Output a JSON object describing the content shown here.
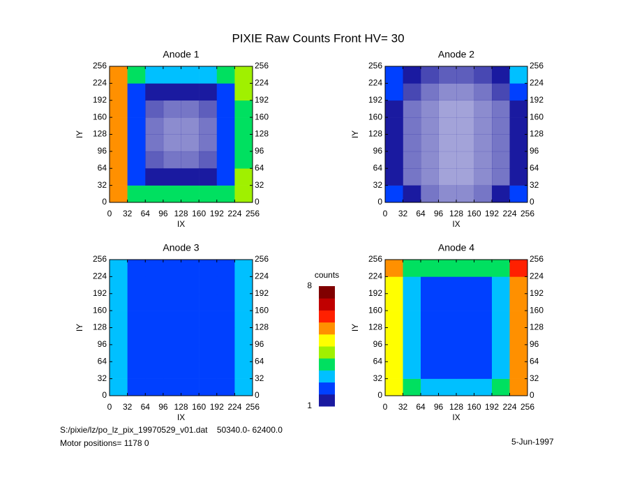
{
  "title": "PIXIE Raw Counts Front HV= 30",
  "footer": {
    "file": "S:/pixie/lz/po_lz_pix_19970529_v01.dat    50340.0- 62400.0",
    "motor": "Motor positions= 1178 0",
    "date": "5-Jun-1997"
  },
  "colorbar": {
    "label": "counts",
    "lim": [
      1,
      8
    ],
    "ticks": [
      1,
      8
    ],
    "colors": [
      "#1a1aa0",
      "#0040ff",
      "#00c0ff",
      "#00e060",
      "#a0f000",
      "#ffff00",
      "#ff9000",
      "#ff2000",
      "#c00000",
      "#800000"
    ]
  },
  "chart_data": [
    {
      "type": "heatmap",
      "title": "Anode 1",
      "xlabel": "IX",
      "ylabel": "IY",
      "xlim": [
        0,
        256
      ],
      "ylim": [
        0,
        256
      ],
      "xticks": [
        0,
        32,
        64,
        96,
        128,
        160,
        192,
        224,
        256
      ],
      "yticks": [
        0,
        32,
        64,
        96,
        128,
        160,
        192,
        224,
        256
      ],
      "values": [
        [
          6,
          3,
          3,
          3,
          3,
          3,
          3,
          4
        ],
        [
          6,
          2,
          1,
          1,
          1,
          1,
          2,
          4
        ],
        [
          6,
          1.5,
          0.7,
          0.6,
          0.6,
          0.7,
          1.5,
          3.5
        ],
        [
          6,
          1.5,
          0.6,
          0.5,
          0.5,
          0.6,
          1.5,
          3.5
        ],
        [
          6,
          1.5,
          0.6,
          0.5,
          0.5,
          0.6,
          1.5,
          3.5
        ],
        [
          6,
          1.5,
          0.7,
          0.6,
          0.6,
          0.7,
          1.5,
          3.5
        ],
        [
          6,
          2,
          1,
          1,
          1,
          1,
          2,
          4
        ],
        [
          6,
          3,
          2.5,
          2.5,
          2.5,
          2.5,
          3,
          4
        ]
      ]
    },
    {
      "type": "heatmap",
      "title": "Anode 2",
      "xlabel": "IX",
      "ylabel": "IY",
      "xlim": [
        0,
        256
      ],
      "ylim": [
        0,
        256
      ],
      "xticks": [
        0,
        32,
        64,
        96,
        128,
        160,
        192,
        224,
        256
      ],
      "yticks": [
        0,
        32,
        64,
        96,
        128,
        160,
        192,
        224,
        256
      ],
      "values": [
        [
          2,
          1,
          0.6,
          0.5,
          0.5,
          0.6,
          1,
          2
        ],
        [
          1,
          0.6,
          0.5,
          0.4,
          0.4,
          0.5,
          0.6,
          1.2
        ],
        [
          1,
          0.6,
          0.5,
          0.4,
          0.4,
          0.5,
          0.6,
          1.2
        ],
        [
          1,
          0.6,
          0.5,
          0.4,
          0.4,
          0.5,
          0.6,
          1.2
        ],
        [
          1,
          0.6,
          0.5,
          0.4,
          0.4,
          0.5,
          0.6,
          1.2
        ],
        [
          1,
          0.6,
          0.5,
          0.4,
          0.4,
          0.5,
          0.6,
          1.2
        ],
        [
          1.5,
          0.8,
          0.6,
          0.5,
          0.5,
          0.6,
          0.8,
          1.5
        ],
        [
          2,
          1.2,
          0.8,
          0.7,
          0.7,
          0.8,
          1.2,
          2.5
        ]
      ]
    },
    {
      "type": "heatmap",
      "title": "Anode 3",
      "xlabel": "IX",
      "ylabel": "IY",
      "xlim": [
        0,
        256
      ],
      "ylim": [
        0,
        256
      ],
      "xticks": [
        0,
        32,
        64,
        96,
        128,
        160,
        192,
        224,
        256
      ],
      "yticks": [
        0,
        32,
        64,
        96,
        128,
        160,
        192,
        224,
        256
      ],
      "values": [
        [
          2.5,
          2,
          1.8,
          1.8,
          1.8,
          1.8,
          2,
          2.5
        ],
        [
          2.5,
          1.6,
          1.5,
          1.5,
          1.4,
          1.5,
          1.6,
          2.5
        ],
        [
          2.5,
          1.6,
          1.5,
          1.5,
          1.4,
          1.5,
          1.6,
          2.5
        ],
        [
          2.5,
          1.6,
          1.5,
          1.5,
          1.4,
          1.5,
          1.6,
          2.5
        ],
        [
          2.5,
          1.6,
          1.5,
          1.5,
          1.4,
          1.5,
          1.6,
          2.5
        ],
        [
          2.5,
          1.6,
          1.5,
          1.5,
          1.4,
          1.5,
          1.6,
          2.5
        ],
        [
          2.5,
          1.6,
          1.5,
          1.5,
          1.4,
          1.5,
          1.6,
          2.5
        ],
        [
          2.5,
          2,
          1.8,
          1.8,
          1.8,
          1.8,
          2,
          2.5
        ]
      ]
    },
    {
      "type": "heatmap",
      "title": "Anode 4",
      "xlabel": "IX",
      "ylabel": "IY",
      "xlim": [
        0,
        256
      ],
      "ylim": [
        0,
        256
      ],
      "xticks": [
        0,
        32,
        64,
        96,
        128,
        160,
        192,
        224,
        256
      ],
      "yticks": [
        0,
        32,
        64,
        96,
        128,
        160,
        192,
        224,
        256
      ],
      "values": [
        [
          5,
          3,
          2.5,
          2.5,
          2.5,
          2.5,
          3,
          6
        ],
        [
          5,
          2.5,
          2,
          1.8,
          1.8,
          2,
          2.5,
          6
        ],
        [
          5,
          2.5,
          2,
          1.8,
          1.8,
          2,
          2.5,
          6
        ],
        [
          5,
          2.5,
          2,
          1.8,
          1.8,
          2,
          2.5,
          6
        ],
        [
          5,
          2.5,
          2,
          1.8,
          1.8,
          2,
          2.5,
          6
        ],
        [
          5,
          2.5,
          2,
          1.8,
          1.8,
          2,
          2.5,
          6
        ],
        [
          5,
          2.5,
          2,
          1.8,
          1.8,
          2,
          2.5,
          6
        ],
        [
          5.5,
          3.5,
          3,
          3,
          3,
          3,
          3.5,
          6.5
        ]
      ]
    }
  ]
}
